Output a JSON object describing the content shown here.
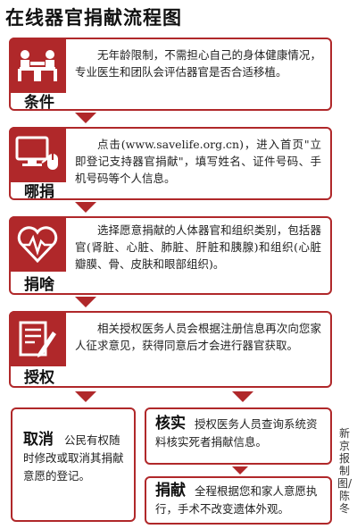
{
  "title": "在线器官捐献流程图",
  "steps": [
    {
      "label": "条件",
      "icon": "consultation-icon",
      "text": "无年龄限制，不需担心自己的身体健康情况，专业医生和团队会评估器官是否合适移植。"
    },
    {
      "label": "哪捐",
      "icon": "computer-mouse-icon",
      "text": "点击(www.savelife.org.cn)，进入首页\"立即登记支持器官捐献\"，填写姓名、证件号码、手机号码等个人信息。"
    },
    {
      "label": "捐啥",
      "icon": "heart-icon",
      "text": "选择愿意捐献的人体器官和组织类别，包括器官(肾脏、心脏、肺脏、肝脏和胰腺)和组织(心脏瓣膜、骨、皮肤和眼部组织)。"
    },
    {
      "label": "授权",
      "icon": "document-pen-icon",
      "text": "相关授权医务人员会根据注册信息再次向您家人征求意见，获得同意后才会进行器官获取。"
    }
  ],
  "cancel": {
    "head": "取消",
    "text": "公民有权随时修改或取消其捐献意愿的登记。"
  },
  "verify": {
    "head": "核实",
    "text": "授权医务人员查询系统资料核实死者捐献信息。"
  },
  "donate": {
    "head": "捐献",
    "text": "全程根据您和家人意愿执行，手术不改变遗体外观。"
  },
  "credit": "新京报制图/陈冬",
  "colors": {
    "accent": "#b0282a"
  }
}
